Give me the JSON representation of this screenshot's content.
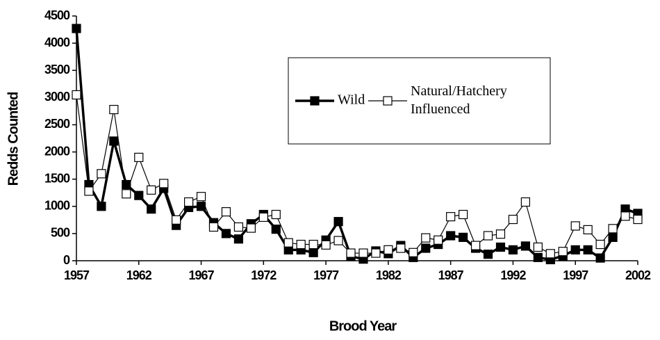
{
  "chart_data": {
    "type": "line",
    "x_label": "Brood Year",
    "y_label": "Redds Counted",
    "x": [
      1957,
      1958,
      1959,
      1960,
      1961,
      1962,
      1963,
      1964,
      1965,
      1966,
      1967,
      1968,
      1969,
      1970,
      1971,
      1972,
      1973,
      1974,
      1975,
      1976,
      1977,
      1978,
      1979,
      1980,
      1981,
      1982,
      1983,
      1984,
      1985,
      1986,
      1987,
      1988,
      1989,
      1990,
      1991,
      1992,
      1993,
      1994,
      1995,
      1996,
      1997,
      1998,
      1999,
      2000,
      2001,
      2002
    ],
    "series": [
      {
        "name": "Wild",
        "color": "#000000",
        "values": [
          4270,
          1400,
          1000,
          2200,
          1400,
          1200,
          950,
          1330,
          650,
          980,
          1000,
          700,
          500,
          400,
          680,
          850,
          580,
          200,
          200,
          150,
          380,
          720,
          80,
          30,
          180,
          130,
          280,
          60,
          230,
          300,
          460,
          430,
          230,
          120,
          250,
          200,
          270,
          60,
          20,
          90,
          200,
          200,
          50,
          430,
          950,
          870
        ]
      },
      {
        "name": "Natural/Hatchery Influenced",
        "color": "#000000",
        "values": [
          3050,
          1280,
          1600,
          2780,
          1230,
          1900,
          1300,
          1420,
          750,
          1080,
          1180,
          620,
          900,
          620,
          600,
          800,
          850,
          330,
          300,
          300,
          290,
          370,
          140,
          140,
          140,
          200,
          230,
          150,
          420,
          380,
          810,
          850,
          280,
          460,
          490,
          760,
          1080,
          250,
          130,
          170,
          640,
          570,
          300,
          590,
          820,
          760
        ]
      }
    ],
    "xlim": [
      1957,
      2002
    ],
    "xticks": [
      1957,
      1962,
      1967,
      1972,
      1977,
      1982,
      1987,
      1992,
      1997,
      2002
    ],
    "ylim": [
      0,
      4500
    ],
    "yticks": [
      0,
      500,
      1000,
      1500,
      2000,
      2500,
      3000,
      3500,
      4000,
      4500
    ],
    "grid": false
  }
}
